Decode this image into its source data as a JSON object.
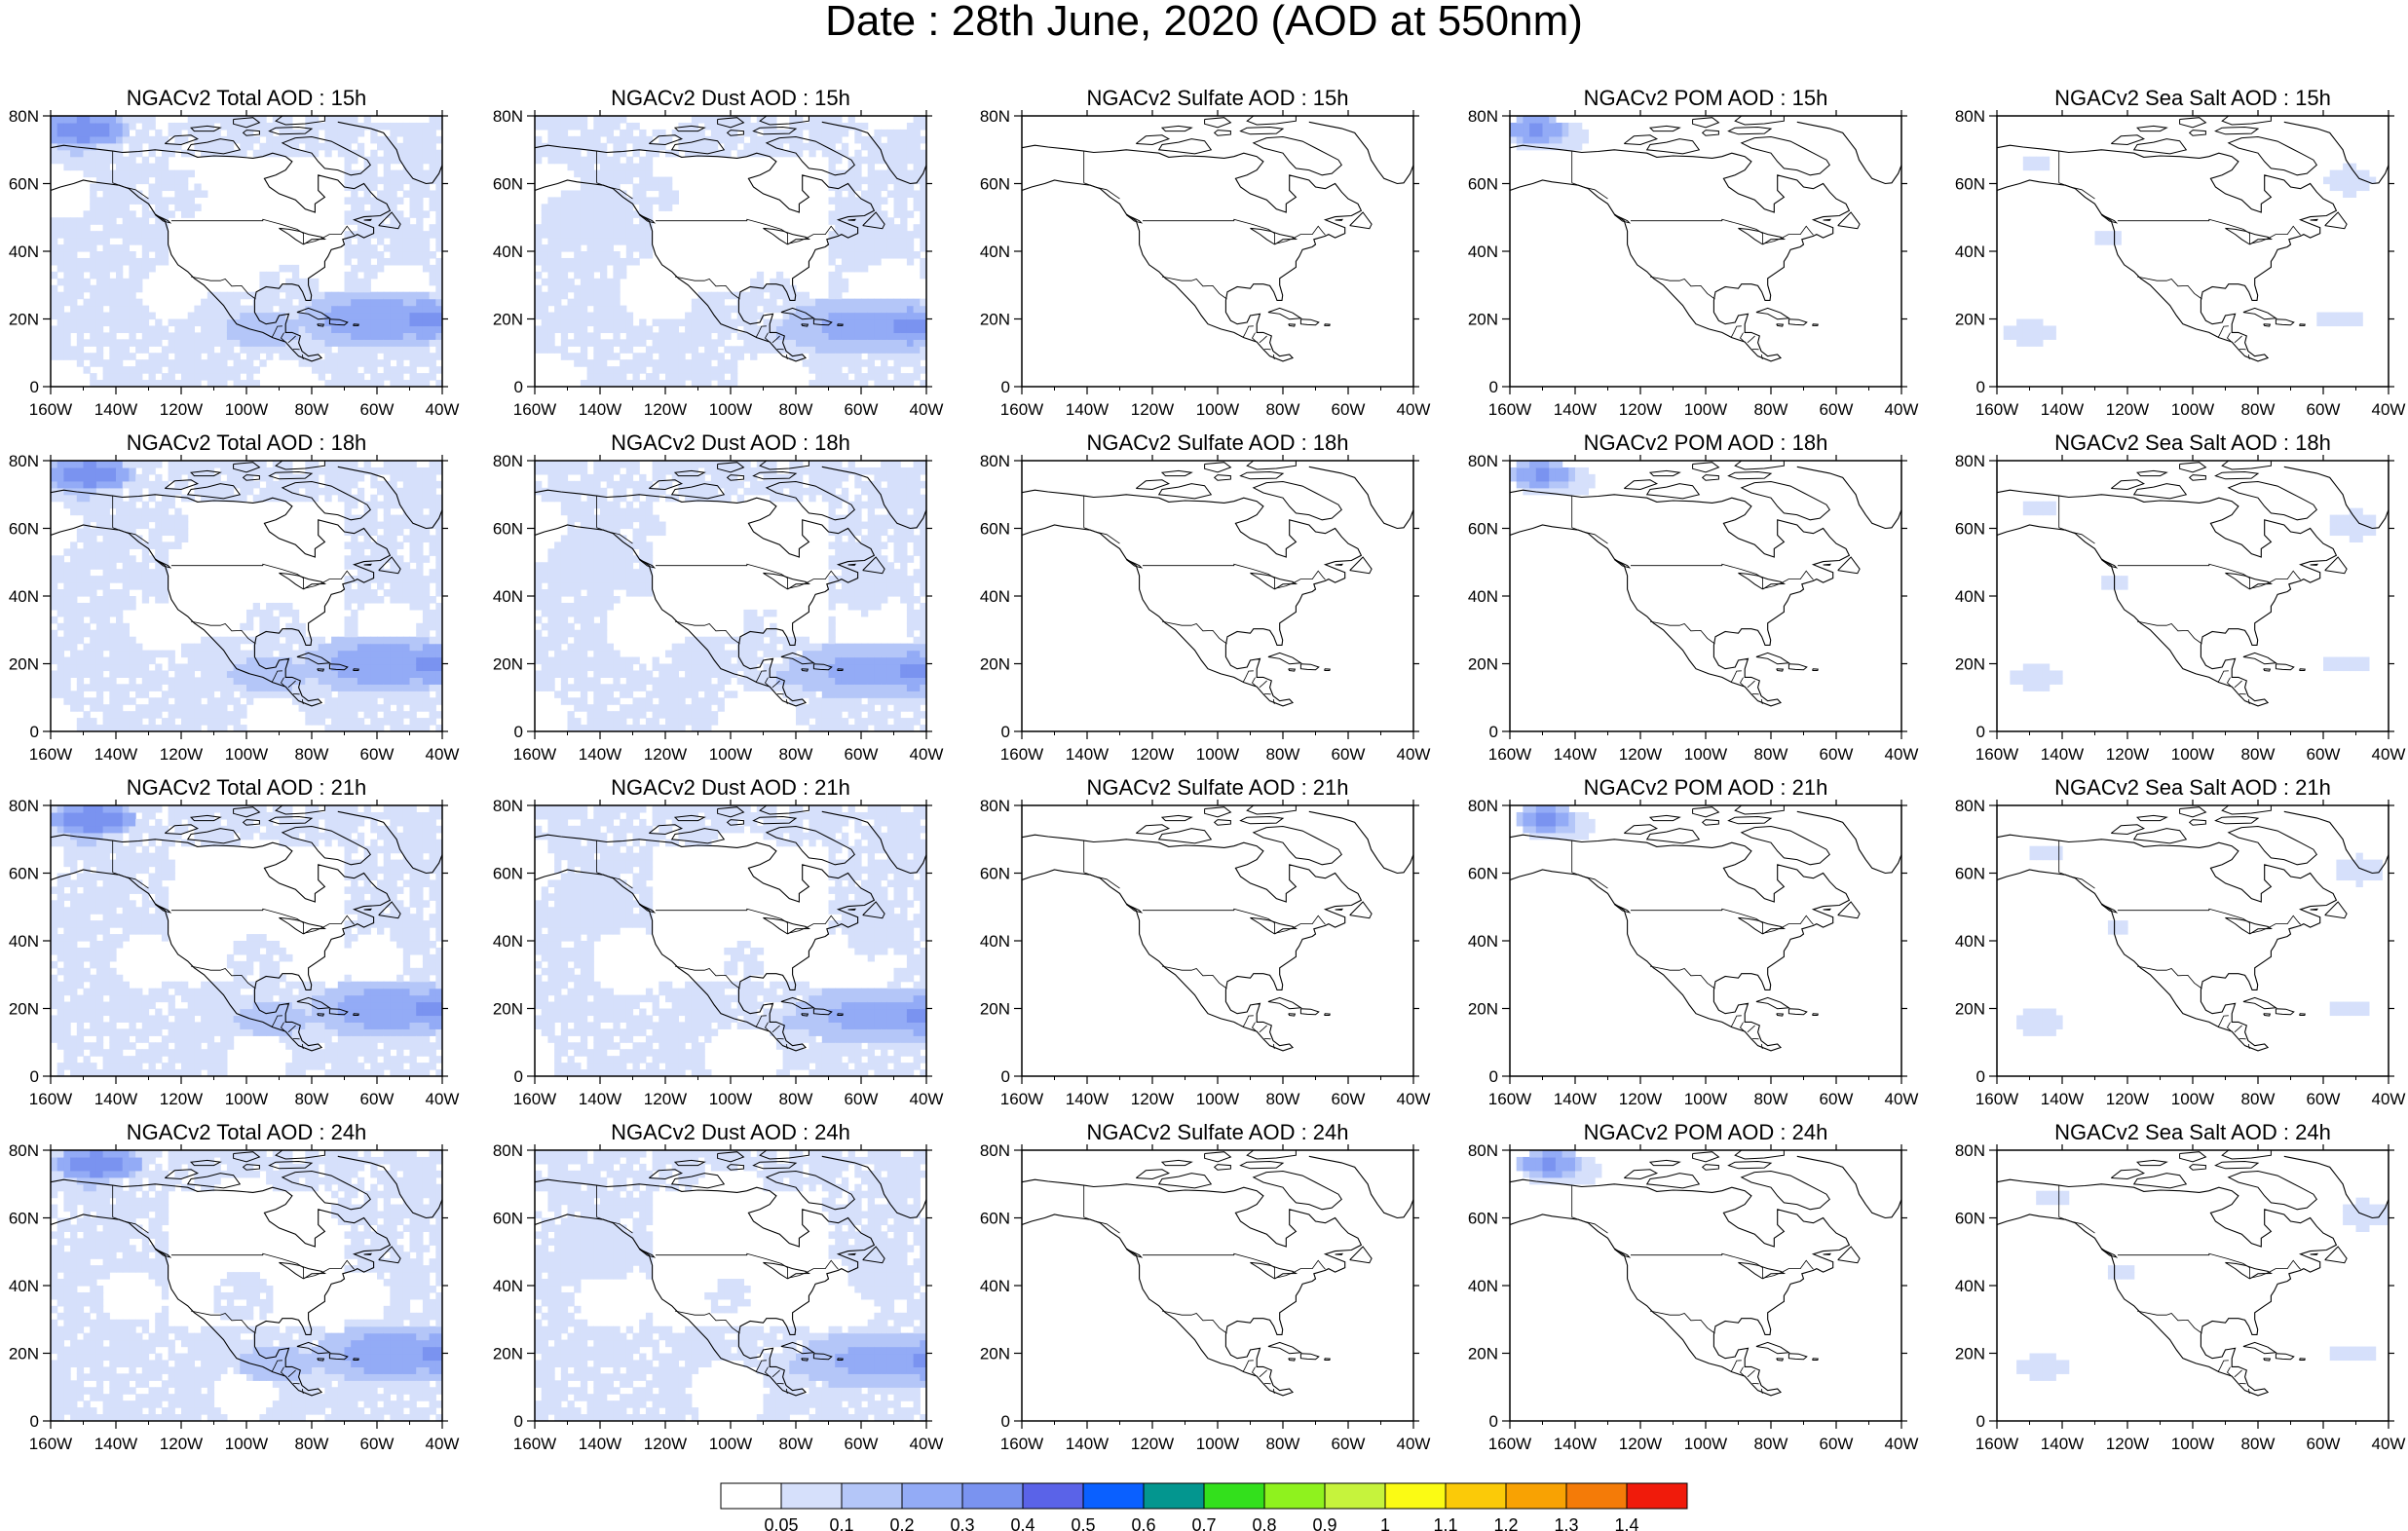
{
  "title": "Date : 28th June, 2020 (AOD at 550nm)",
  "fields": [
    {
      "key": "total",
      "title_prefix": "NGACv2 Total AOD"
    },
    {
      "key": "dust",
      "title_prefix": "NGACv2 Dust AOD"
    },
    {
      "key": "sulfate",
      "title_prefix": "NGACv2 Sulfate AOD"
    },
    {
      "key": "pom",
      "title_prefix": "NGACv2 POM AOD"
    },
    {
      "key": "seasalt",
      "title_prefix": "NGACv2 Sea Salt AOD"
    }
  ],
  "times": [
    "15h",
    "18h",
    "21h",
    "24h"
  ],
  "panel_titles": [
    [
      "NGACv2 Total AOD : 15h",
      "NGACv2 Dust AOD : 15h",
      "NGACv2 Sulfate AOD : 15h",
      "NGACv2 POM AOD : 15h",
      "NGACv2 Sea Salt AOD : 15h"
    ],
    [
      "NGACv2 Total AOD : 18h",
      "NGACv2 Dust AOD : 18h",
      "NGACv2 Sulfate AOD : 18h",
      "NGACv2 POM AOD : 18h",
      "NGACv2 Sea Salt AOD : 18h"
    ],
    [
      "NGACv2 Total AOD : 21h",
      "NGACv2 Dust AOD : 21h",
      "NGACv2 Sulfate AOD : 21h",
      "NGACv2 POM AOD : 21h",
      "NGACv2 Sea Salt AOD : 21h"
    ],
    [
      "NGACv2 Total AOD : 24h",
      "NGACv2 Dust AOD : 24h",
      "NGACv2 Sulfate AOD : 24h",
      "NGACv2 POM AOD : 24h",
      "NGACv2 Sea Salt  AOD : 24h"
    ]
  ],
  "lon_ticks": [
    "160W",
    "140W",
    "120W",
    "100W",
    "80W",
    "60W",
    "40W"
  ],
  "lat_ticks": [
    "0",
    "20N",
    "40N",
    "60N",
    "80N"
  ],
  "map_extent": {
    "lon": [
      -160,
      -40
    ],
    "lat": [
      0,
      80
    ]
  },
  "colorbar": {
    "labels": [
      "0.05",
      "0.1",
      "0.2",
      "0.3",
      "0.4",
      "0.5",
      "0.6",
      "0.7",
      "0.8",
      "0.9",
      "1",
      "1.1",
      "1.2",
      "1.3",
      "1.4"
    ],
    "colors": [
      "#ffffff",
      "#d6e0fb",
      "#b4c6f8",
      "#93abf6",
      "#7a93f0",
      "#5a63e8",
      "#0a60ff",
      "#03968f",
      "#33e01c",
      "#8ff21e",
      "#c6f33c",
      "#fbfb14",
      "#fbca08",
      "#f8a203",
      "#f47b08",
      "#f01b0b"
    ]
  },
  "chart_data": {
    "type": "heatmap",
    "title": "Date : 28th June, 2020 (AOD at 550nm)",
    "x_range": [
      -160,
      -40
    ],
    "y_range": [
      0,
      80
    ],
    "levels": [
      0.05,
      0.1,
      0.2,
      0.3,
      0.4,
      0.5,
      0.6,
      0.7,
      0.8,
      0.9,
      1.0,
      1.1,
      1.2,
      1.3,
      1.4
    ]
  }
}
